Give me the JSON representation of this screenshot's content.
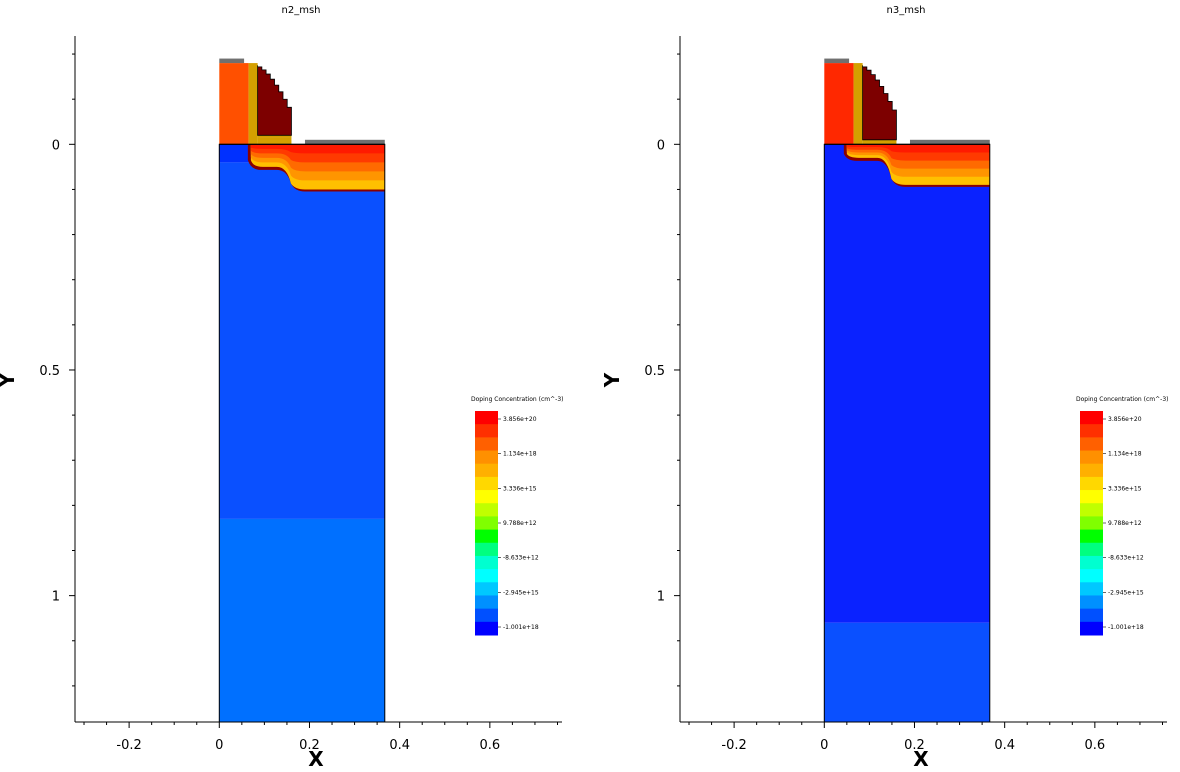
{
  "chart_data": [
    {
      "type": "heatmap",
      "title": "n2_msh",
      "xlabel": "X",
      "ylabel": "Y",
      "xlim": [
        -0.32,
        0.76
      ],
      "ylim": [
        -0.24,
        1.28
      ],
      "y_inverted": true,
      "x_ticks": [
        -0.2,
        0,
        0.2,
        0.4,
        0.6
      ],
      "x_tick_labels": [
        "-0.2",
        "0",
        "0.2",
        "0.4",
        "0.6"
      ],
      "y_ticks": [
        0,
        0.5,
        1
      ],
      "y_tick_labels": [
        "0",
        "0.5",
        "1"
      ],
      "grid": false,
      "colorbar": {
        "title": "Doping Concentration (cm^-3)",
        "labels": [
          "3.856e+20",
          "1.134e+18",
          "3.336e+15",
          "9.788e+12",
          "-8.633e+12",
          "-2.945e+15",
          "-1.001e+18"
        ]
      },
      "regions": [
        {
          "name": "substrate-lower",
          "x": [
            0,
            0.367
          ],
          "y": [
            0.83,
            1.28
          ],
          "color": "#0070ff"
        },
        {
          "name": "substrate-upper",
          "x": [
            0,
            0.367
          ],
          "y": [
            0.04,
            0.83
          ],
          "color": "#0a50ff"
        },
        {
          "name": "source-region",
          "x": [
            0,
            0.07
          ],
          "y": [
            0,
            0.04
          ],
          "color": "#0030ff"
        },
        {
          "name": "drain-doping",
          "shape": "junction",
          "x_start": 0.07,
          "x_step": 0.15,
          "x_end": 0.367,
          "y_top": 0,
          "y_shallow": 0.05,
          "y_deep": 0.1
        },
        {
          "name": "gate-poly",
          "x": [
            0,
            0.065
          ],
          "y": [
            -0.18,
            0
          ],
          "color": "#ff5000"
        },
        {
          "name": "spacer",
          "x": [
            0.065,
            0.085
          ],
          "y": [
            -0.18,
            0
          ],
          "color": "#d4a000"
        },
        {
          "name": "spacer-foot",
          "x": [
            0.085,
            0.16
          ],
          "y": [
            -0.015,
            0
          ],
          "color": "#d4a000"
        },
        {
          "name": "oxide-cap",
          "x": [
            0.085,
            0.16
          ],
          "y": [
            -0.025,
            -0.015
          ],
          "color": "#d4a000"
        },
        {
          "name": "nitride-spacer",
          "shape": "staircase",
          "x": [
            0.085,
            0.16
          ],
          "y": [
            -0.175,
            -0.02
          ],
          "color": "#7d0000"
        },
        {
          "name": "gate-contact",
          "x": [
            0,
            0.055
          ],
          "y": [
            -0.19,
            -0.18
          ],
          "color": "#707070"
        },
        {
          "name": "drain-contact",
          "x": [
            0.19,
            0.367
          ],
          "y": [
            -0.01,
            0
          ],
          "color": "#707070"
        }
      ]
    },
    {
      "type": "heatmap",
      "title": "n3_msh",
      "xlabel": "X",
      "ylabel": "Y",
      "xlim": [
        -0.32,
        0.76
      ],
      "ylim": [
        -0.24,
        1.28
      ],
      "y_inverted": true,
      "x_ticks": [
        -0.2,
        0,
        0.2,
        0.4,
        0.6
      ],
      "x_tick_labels": [
        "-0.2",
        "0",
        "0.2",
        "0.4",
        "0.6"
      ],
      "y_ticks": [
        0,
        0.5,
        1
      ],
      "y_tick_labels": [
        "0",
        "0.5",
        "1"
      ],
      "grid": false,
      "colorbar": {
        "title": "Doping Concentration (cm^-3)",
        "labels": [
          "3.856e+20",
          "1.134e+18",
          "3.336e+15",
          "9.788e+12",
          "-8.633e+12",
          "-2.945e+15",
          "-1.001e+18"
        ]
      },
      "regions": [
        {
          "name": "substrate-lower",
          "x": [
            0,
            0.367
          ],
          "y": [
            1.06,
            1.28
          ],
          "color": "#0a50ff"
        },
        {
          "name": "substrate-upper",
          "x": [
            0,
            0.367
          ],
          "y": [
            0,
            1.06
          ],
          "color": "#0a22ff"
        },
        {
          "name": "drain-doping",
          "shape": "junction",
          "x_start": 0.05,
          "x_step": 0.14,
          "x_end": 0.367,
          "y_top": 0,
          "y_shallow": 0.03,
          "y_deep": 0.09
        },
        {
          "name": "gate-poly",
          "x": [
            0,
            0.065
          ],
          "y": [
            -0.18,
            0
          ],
          "color": "#ff2800"
        },
        {
          "name": "spacer",
          "x": [
            0.065,
            0.085
          ],
          "y": [
            -0.18,
            0
          ],
          "color": "#d4a000"
        },
        {
          "name": "spacer-foot",
          "x": [
            0.085,
            0.16
          ],
          "y": [
            -0.01,
            0
          ],
          "color": "#d4a000"
        },
        {
          "name": "nitride-spacer",
          "shape": "staircase",
          "x": [
            0.085,
            0.16
          ],
          "y": [
            -0.175,
            -0.01
          ],
          "color": "#7d0000"
        },
        {
          "name": "gate-contact",
          "x": [
            0,
            0.055
          ],
          "y": [
            -0.19,
            -0.18
          ],
          "color": "#707070"
        },
        {
          "name": "drain-contact",
          "x": [
            0.19,
            0.367
          ],
          "y": [
            -0.01,
            0
          ],
          "color": "#707070"
        }
      ]
    }
  ],
  "colors": {
    "colorbar_stops": [
      "#ff0000",
      "#ff3000",
      "#ff6000",
      "#ff9000",
      "#ffb000",
      "#ffd800",
      "#ffff00",
      "#c0ff00",
      "#80ff00",
      "#00ff00",
      "#00ff80",
      "#00ffd0",
      "#00ffff",
      "#00c8ff",
      "#0090ff",
      "#0050ff",
      "#0000ff"
    ],
    "outline": "#000000",
    "junction": "#8a0000"
  }
}
